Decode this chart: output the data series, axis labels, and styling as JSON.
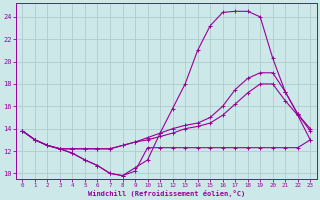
{
  "xlabel": "Windchill (Refroidissement éolien,°C)",
  "bg_color": "#cde8e8",
  "line_color": "#990099",
  "grid_color": "#b0cccc",
  "xlim": [
    -0.5,
    23.5
  ],
  "ylim": [
    9.5,
    25.2
  ],
  "xticks": [
    0,
    1,
    2,
    3,
    4,
    5,
    6,
    7,
    8,
    9,
    10,
    11,
    12,
    13,
    14,
    15,
    16,
    17,
    18,
    19,
    20,
    21,
    22,
    23
  ],
  "yticks": [
    10,
    12,
    14,
    16,
    18,
    20,
    22,
    24
  ],
  "lines": [
    {
      "x": [
        0,
        1,
        2,
        3,
        4,
        5,
        6,
        7,
        8,
        9,
        10,
        11,
        12,
        13,
        14,
        15,
        16,
        17,
        18,
        19,
        20,
        21,
        22,
        23
      ],
      "y": [
        13.8,
        13.0,
        12.5,
        12.2,
        11.8,
        11.2,
        10.7,
        10.0,
        9.8,
        10.2,
        12.3,
        12.3,
        12.3,
        12.3,
        12.3,
        12.3,
        12.3,
        12.3,
        12.3,
        12.3,
        12.3,
        12.3,
        12.3,
        13.0
      ]
    },
    {
      "x": [
        0,
        1,
        2,
        3,
        4,
        5,
        6,
        7,
        8,
        9,
        10,
        11,
        12,
        13,
        14,
        15,
        16,
        17,
        18,
        19,
        20,
        21,
        22,
        23
      ],
      "y": [
        13.8,
        13.0,
        12.5,
        12.2,
        11.8,
        11.2,
        10.7,
        10.0,
        9.8,
        10.5,
        11.2,
        13.6,
        15.8,
        18.0,
        21.0,
        23.2,
        24.4,
        24.5,
        24.5,
        24.0,
        20.3,
        17.3,
        15.3,
        13.8
      ]
    },
    {
      "x": [
        0,
        1,
        2,
        3,
        4,
        5,
        6,
        7,
        8,
        9,
        10,
        11,
        12,
        13,
        14,
        15,
        16,
        17,
        18,
        19,
        20,
        21,
        22,
        23
      ],
      "y": [
        13.8,
        13.0,
        12.5,
        12.2,
        12.2,
        12.2,
        12.2,
        12.2,
        12.5,
        12.8,
        13.2,
        13.6,
        14.0,
        14.3,
        14.5,
        15.0,
        16.0,
        17.5,
        18.5,
        19.0,
        19.0,
        17.3,
        15.3,
        14.0
      ]
    },
    {
      "x": [
        0,
        1,
        2,
        3,
        4,
        5,
        6,
        7,
        8,
        9,
        10,
        11,
        12,
        13,
        14,
        15,
        16,
        17,
        18,
        19,
        20,
        21,
        22,
        23
      ],
      "y": [
        13.8,
        13.0,
        12.5,
        12.2,
        12.2,
        12.2,
        12.2,
        12.2,
        12.5,
        12.8,
        13.0,
        13.3,
        13.6,
        14.0,
        14.2,
        14.5,
        15.2,
        16.2,
        17.2,
        18.0,
        18.0,
        16.5,
        15.2,
        13.0
      ]
    }
  ]
}
